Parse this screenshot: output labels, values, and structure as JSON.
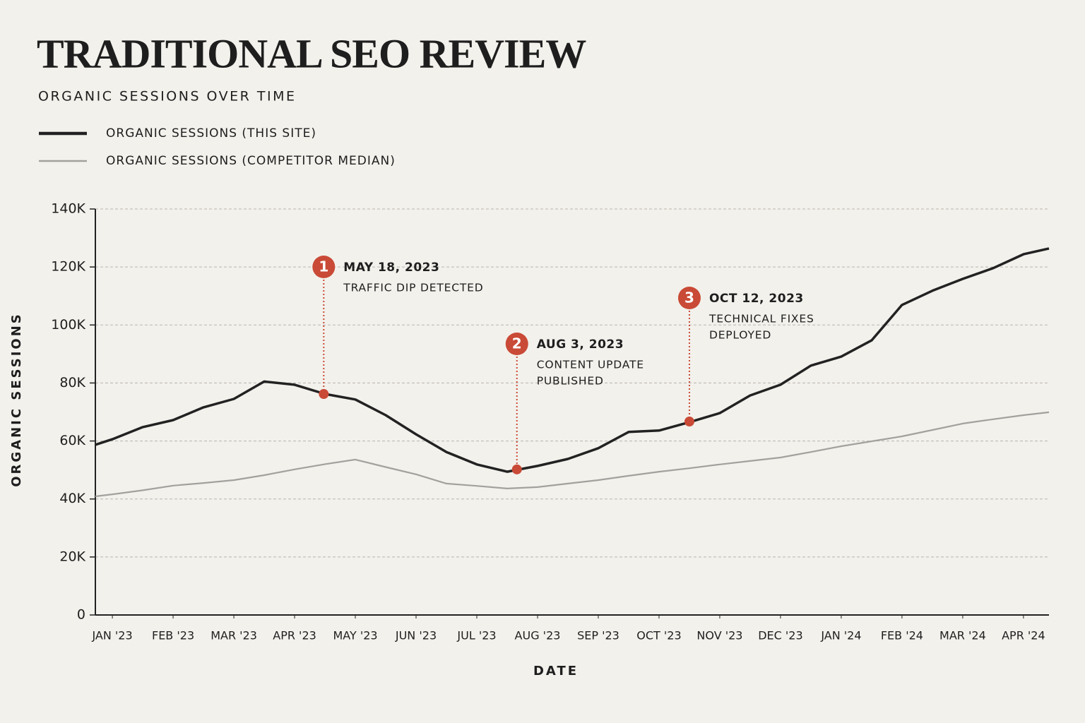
{
  "chart_data": {
    "type": "line",
    "title": "TRADITIONAL SEO REVIEW",
    "subtitle": "ORGANIC SESSIONS OVER TIME",
    "x_label": "DATE",
    "y_label": "ORGANIC SESSIONS",
    "x": [
      -0.28,
      0,
      0.5,
      1,
      1.5,
      2,
      2.5,
      3,
      3.5,
      4,
      4.5,
      5,
      5.5,
      6,
      6.5,
      7,
      7.5,
      8,
      8.5,
      9,
      9.5,
      10,
      10.5,
      11,
      11.5,
      12,
      12.5,
      13,
      13.5,
      14,
      14.5,
      15,
      15.42
    ],
    "xlim": [
      -0.28,
      15.42
    ],
    "xticks": [
      {
        "value": 0,
        "label": "JAN '23"
      },
      {
        "value": 1,
        "label": "FEB '23"
      },
      {
        "value": 2,
        "label": "MAR '23"
      },
      {
        "value": 3,
        "label": "APR '23"
      },
      {
        "value": 4,
        "label": "MAY '23"
      },
      {
        "value": 5,
        "label": "JUN '23"
      },
      {
        "value": 6,
        "label": "JUL '23"
      },
      {
        "value": 7,
        "label": "AUG '23"
      },
      {
        "value": 8,
        "label": "SEP '23"
      },
      {
        "value": 9,
        "label": "OCT '23"
      },
      {
        "value": 10,
        "label": "NOV '23"
      },
      {
        "value": 11,
        "label": "DEC '23"
      },
      {
        "value": 12,
        "label": "JAN '24"
      },
      {
        "value": 13,
        "label": "FEB '24"
      },
      {
        "value": 14,
        "label": "MAR '24"
      },
      {
        "value": 15,
        "label": "APR '24"
      }
    ],
    "ylim": [
      0,
      140000
    ],
    "yticks": [
      0,
      {
        "value": 20000,
        "label": "20K"
      },
      {
        "value": 40000,
        "label": "40K"
      },
      {
        "value": 60000,
        "label": "60K"
      },
      {
        "value": 80000,
        "label": "80K"
      },
      {
        "value": 100000,
        "label": "100K"
      },
      {
        "value": 120000,
        "label": "120K"
      },
      {
        "value": 140000,
        "label": "140K"
      }
    ],
    "grid": true,
    "series": [
      {
        "name": "ORGANIC SESSIONS (THIS SITE)",
        "color": "#222222",
        "values": [
          58700,
          60600,
          64800,
          67200,
          71600,
          74500,
          80500,
          79400,
          76200,
          74300,
          68900,
          62300,
          56200,
          51900,
          49400,
          51400,
          53800,
          57500,
          63100,
          63600,
          66500,
          69600,
          75700,
          79400,
          86000,
          89100,
          94700,
          106900,
          111800,
          115900,
          119600,
          124400,
          126400
        ]
      },
      {
        "name": "ORGANIC SESSIONS (COMPETITOR MEDIAN)",
        "color": "#a3a19d",
        "values": [
          40900,
          41600,
          43000,
          44600,
          45500,
          46500,
          48200,
          50200,
          52000,
          53600,
          51000,
          48500,
          45300,
          44500,
          43600,
          44100,
          45300,
          46500,
          48000,
          49400,
          50600,
          51900,
          53100,
          54300,
          56200,
          58200,
          59900,
          61600,
          63800,
          66000,
          67500,
          68900,
          69900
        ]
      }
    ],
    "annotation_color": "#c94a36",
    "annotations": [
      {
        "number": 1,
        "date": "MAY 18, 2023",
        "lines": [
          "TRAFFIC DIP DETECTED"
        ],
        "x": 3.48,
        "y": 76200
      },
      {
        "number": 2,
        "date": "AUG 3, 2023",
        "lines": [
          "CONTENT UPDATE",
          "PUBLISHED"
        ],
        "x": 6.66,
        "y": 50200
      },
      {
        "number": 3,
        "date": "OCT 12, 2023",
        "lines": [
          "TECHNICAL FIXES",
          "DEPLOYED"
        ],
        "x": 9.5,
        "y": 66700
      }
    ]
  }
}
